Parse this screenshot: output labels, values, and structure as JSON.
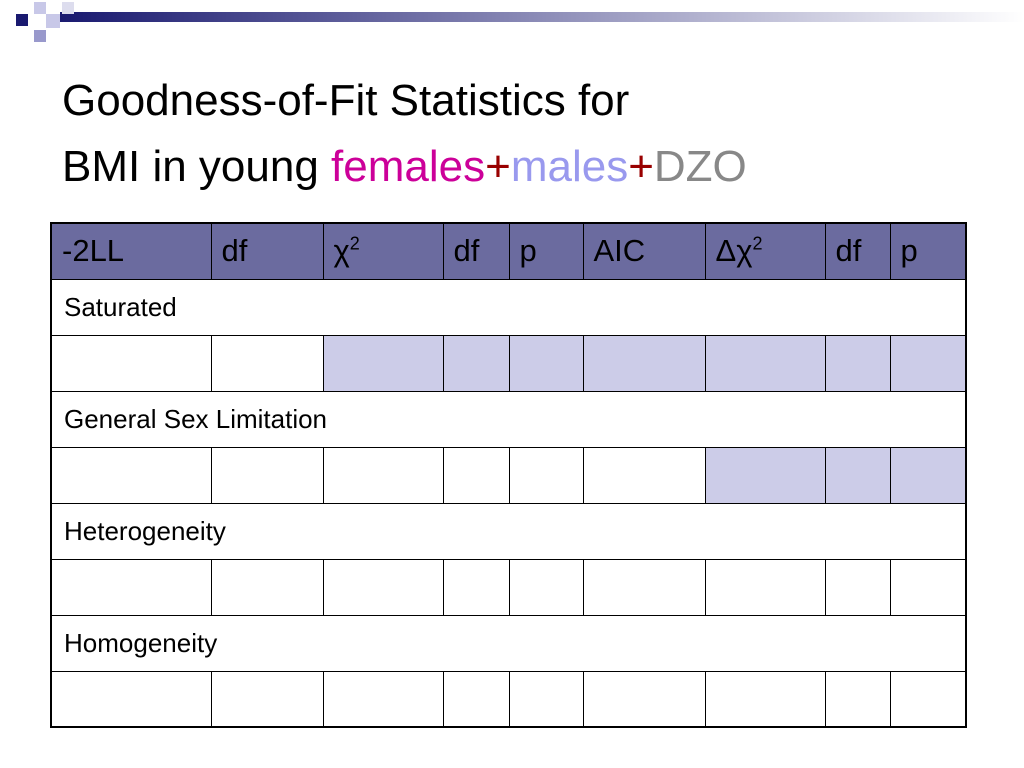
{
  "title": {
    "line1": "Goodness-of-Fit Statistics for",
    "line2_prefix": "BMI in young",
    "females": "females",
    "plus1": "+",
    "males": "males",
    "plus2": "+",
    "dzo": "DZO"
  },
  "table": {
    "header": [
      "-2LL",
      "df",
      {
        "symbol": "χ",
        "sup": "2"
      },
      "df",
      "p",
      "AIC",
      {
        "symbol": "Δχ",
        "sup": "2"
      },
      "df",
      "p"
    ],
    "sections": [
      "Saturated",
      "General Sex Limitation",
      "Heterogeneity",
      "Homogeneity"
    ]
  }
}
